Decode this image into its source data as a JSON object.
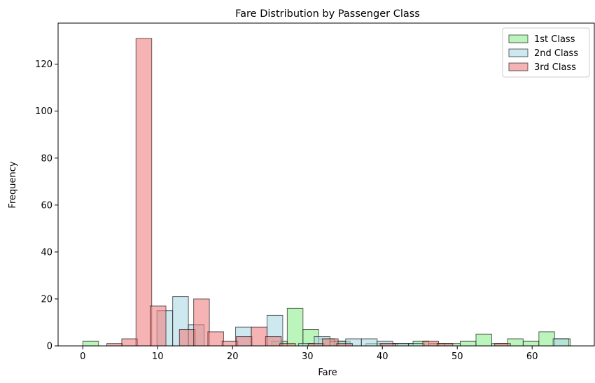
{
  "chart_data": {
    "type": "bar",
    "title": "Fare Distribution by Passenger Class",
    "xlabel": "Fare",
    "ylabel": "Frequency",
    "xlim": [
      -3.3,
      68.3
    ],
    "ylim": [
      0,
      137.5
    ],
    "xticks": [
      0,
      10,
      20,
      30,
      40,
      50,
      60
    ],
    "yticks": [
      0,
      20,
      40,
      60,
      80,
      100,
      120
    ],
    "bin_width": 2.1,
    "legend_position": "top-right",
    "series": [
      {
        "name": "1st Class",
        "color": "#90ee90",
        "bins": [
          {
            "x": 0.0,
            "count": 2
          },
          {
            "x": 25.2,
            "count": 2
          },
          {
            "x": 27.3,
            "count": 16
          },
          {
            "x": 29.4,
            "count": 7
          },
          {
            "x": 31.5,
            "count": 3
          },
          {
            "x": 33.6,
            "count": 2
          },
          {
            "x": 37.8,
            "count": 1
          },
          {
            "x": 39.9,
            "count": 1
          },
          {
            "x": 42.0,
            "count": 1
          },
          {
            "x": 44.1,
            "count": 2
          },
          {
            "x": 46.2,
            "count": 1
          },
          {
            "x": 48.3,
            "count": 1
          },
          {
            "x": 50.4,
            "count": 2
          },
          {
            "x": 52.5,
            "count": 5
          },
          {
            "x": 54.6,
            "count": 1
          },
          {
            "x": 56.7,
            "count": 3
          },
          {
            "x": 58.8,
            "count": 2
          },
          {
            "x": 60.9,
            "count": 6
          },
          {
            "x": 63.0,
            "count": 3
          }
        ]
      },
      {
        "name": "2nd Class",
        "color": "#add8e6",
        "bins": [
          {
            "x": 9.9,
            "count": 15
          },
          {
            "x": 12.0,
            "count": 21
          },
          {
            "x": 14.1,
            "count": 9
          },
          {
            "x": 20.4,
            "count": 8
          },
          {
            "x": 24.6,
            "count": 13
          },
          {
            "x": 28.8,
            "count": 1
          },
          {
            "x": 30.9,
            "count": 4
          },
          {
            "x": 33.0,
            "count": 2
          },
          {
            "x": 35.1,
            "count": 3
          },
          {
            "x": 37.2,
            "count": 3
          },
          {
            "x": 39.3,
            "count": 2
          },
          {
            "x": 41.4,
            "count": 1
          },
          {
            "x": 43.5,
            "count": 1
          },
          {
            "x": 62.8,
            "count": 3
          }
        ]
      },
      {
        "name": "3rd Class",
        "color": "#f08080",
        "bins": [
          {
            "x": 3.2,
            "count": 1
          },
          {
            "x": 5.2,
            "count": 3
          },
          {
            "x": 7.1,
            "count": 131
          },
          {
            "x": 9.0,
            "count": 17
          },
          {
            "x": 11.0,
            "count": 0
          },
          {
            "x": 12.9,
            "count": 7
          },
          {
            "x": 14.8,
            "count": 20
          },
          {
            "x": 16.7,
            "count": 6
          },
          {
            "x": 18.6,
            "count": 2
          },
          {
            "x": 20.5,
            "count": 4
          },
          {
            "x": 22.5,
            "count": 8
          },
          {
            "x": 24.4,
            "count": 4
          },
          {
            "x": 26.3,
            "count": 1
          },
          {
            "x": 28.2,
            "count": 0
          },
          {
            "x": 30.1,
            "count": 1
          },
          {
            "x": 32.0,
            "count": 3
          },
          {
            "x": 33.9,
            "count": 1
          },
          {
            "x": 39.7,
            "count": 1
          },
          {
            "x": 43.5,
            "count": 0
          },
          {
            "x": 45.4,
            "count": 2
          },
          {
            "x": 47.3,
            "count": 1
          },
          {
            "x": 55.0,
            "count": 1
          }
        ]
      }
    ]
  }
}
